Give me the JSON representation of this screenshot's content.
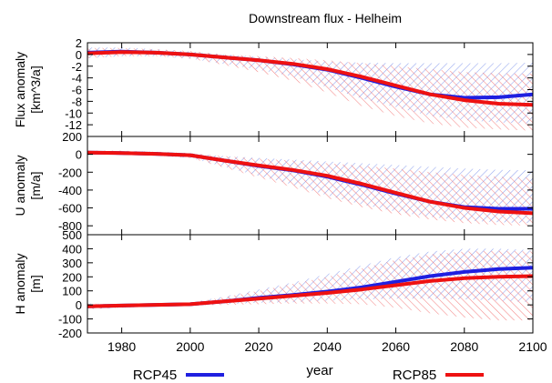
{
  "chart_data": {
    "type": "line",
    "title": "Downstream flux - Helheim",
    "xlabel": "year",
    "x_ticks": [
      "1980",
      "2000",
      "2020",
      "2040",
      "2060",
      "2080",
      "2100"
    ],
    "xlim": [
      1970,
      2100
    ],
    "legend_position": "bottom",
    "legend": [
      {
        "name": "RCP45",
        "color": "#1f1fe0"
      },
      {
        "name": "RCP85",
        "color": "#ee1111"
      }
    ],
    "panels": [
      {
        "ylabel_line1": "Flux anomaly",
        "ylabel_line2": "[km^3/a]",
        "ylim": [
          -14,
          2
        ],
        "y_ticks": [
          "2",
          "0",
          "-2",
          "-4",
          "-6",
          "-8",
          "-10",
          "-12"
        ],
        "x": [
          1970,
          1980,
          1990,
          2000,
          2010,
          2020,
          2030,
          2040,
          2050,
          2060,
          2070,
          2080,
          2090,
          2100
        ],
        "series": [
          {
            "name": "RCP45",
            "values": [
              0.3,
              0.5,
              0.3,
              0.0,
              -0.5,
              -1.0,
              -1.7,
              -2.6,
              -4.0,
              -5.5,
              -6.8,
              -7.4,
              -7.3,
              -6.8
            ]
          },
          {
            "name": "RCP85",
            "values": [
              0.2,
              0.4,
              0.3,
              0.0,
              -0.5,
              -1.0,
              -1.6,
              -2.5,
              -3.8,
              -5.3,
              -6.8,
              -7.8,
              -8.4,
              -8.6
            ]
          }
        ],
        "range_rcp45": {
          "upper": [
            1.2,
            1.2,
            0.9,
            0.5,
            0.0,
            -0.4,
            -0.8,
            -1.2,
            -1.4,
            -1.5,
            -1.5,
            -1.5,
            -1.5,
            -1.4
          ],
          "lower": [
            -0.6,
            -0.3,
            -0.3,
            -0.7,
            -1.6,
            -2.6,
            -3.8,
            -5.6,
            -7.5,
            -9.0,
            -10.5,
            -11.2,
            -11.6,
            -11.8
          ]
        },
        "range_rcp85": {
          "upper": [
            1.1,
            1.1,
            0.9,
            0.6,
            0.0,
            -0.3,
            -0.6,
            -1.0,
            -1.5,
            -2.0,
            -2.5,
            -3.0,
            -3.2,
            -3.3
          ],
          "lower": [
            -0.6,
            -0.3,
            -0.3,
            -0.7,
            -1.8,
            -3.0,
            -4.5,
            -6.5,
            -8.8,
            -10.5,
            -11.8,
            -12.5,
            -12.8,
            -13.0
          ]
        }
      },
      {
        "ylabel_line1": "U anomaly",
        "ylabel_line2": "[m/a]",
        "ylim": [
          -900,
          200
        ],
        "y_ticks": [
          "200",
          "0",
          "-200",
          "-400",
          "-600",
          "-800"
        ],
        "x": [
          1970,
          1980,
          1990,
          2000,
          2010,
          2020,
          2030,
          2040,
          2050,
          2060,
          2070,
          2080,
          2090,
          2100
        ],
        "series": [
          {
            "name": "RCP45",
            "values": [
              20,
              15,
              5,
              -10,
              -70,
              -130,
              -180,
              -250,
              -340,
              -440,
              -530,
              -590,
              -610,
              -610
            ]
          },
          {
            "name": "RCP85",
            "values": [
              20,
              15,
              5,
              -10,
              -70,
              -125,
              -175,
              -240,
              -330,
              -430,
              -530,
              -600,
              -640,
              -660
            ]
          }
        ],
        "range_rcp45": {
          "upper": [
            40,
            40,
            30,
            10,
            -20,
            -40,
            -60,
            -80,
            -100,
            -120,
            -140,
            -160,
            -175,
            -180
          ],
          "lower": [
            0,
            -5,
            -15,
            -40,
            -140,
            -240,
            -340,
            -460,
            -560,
            -640,
            -700,
            -740,
            -760,
            -770
          ]
        },
        "range_rcp85": {
          "upper": [
            40,
            40,
            30,
            15,
            -20,
            -50,
            -70,
            -100,
            -130,
            -160,
            -200,
            -230,
            -250,
            -260
          ],
          "lower": [
            0,
            -5,
            -15,
            -40,
            -150,
            -260,
            -370,
            -490,
            -590,
            -670,
            -730,
            -770,
            -790,
            -800
          ]
        }
      },
      {
        "ylabel_line1": "H anomaly",
        "ylabel_line2": "[m]",
        "ylim": [
          -200,
          500
        ],
        "y_ticks": [
          "500",
          "400",
          "300",
          "200",
          "100",
          "0",
          "-100",
          "-200"
        ],
        "x": [
          1970,
          1980,
          1990,
          2000,
          2010,
          2020,
          2030,
          2040,
          2050,
          2060,
          2070,
          2080,
          2090,
          2100
        ],
        "series": [
          {
            "name": "RCP45",
            "values": [
              -10,
              -5,
              0,
              5,
              25,
              50,
              70,
              95,
              125,
              165,
              205,
              235,
              255,
              265
            ]
          },
          {
            "name": "RCP85",
            "values": [
              -10,
              -5,
              0,
              5,
              25,
              45,
              65,
              85,
              110,
              140,
              170,
              190,
              200,
              205
            ]
          }
        ],
        "range_rcp45": {
          "upper": [
            10,
            5,
            5,
            15,
            60,
            110,
            160,
            220,
            280,
            340,
            380,
            400,
            400,
            390
          ],
          "lower": [
            -30,
            -20,
            -10,
            0,
            5,
            15,
            20,
            30,
            40,
            45,
            45,
            40,
            30,
            20
          ]
        },
        "range_rcp85": {
          "upper": [
            10,
            5,
            5,
            15,
            55,
            100,
            150,
            200,
            260,
            320,
            360,
            380,
            385,
            380
          ],
          "lower": [
            -30,
            -20,
            -10,
            -5,
            0,
            5,
            10,
            10,
            5,
            -20,
            -60,
            -90,
            -110,
            -110
          ]
        }
      }
    ]
  }
}
